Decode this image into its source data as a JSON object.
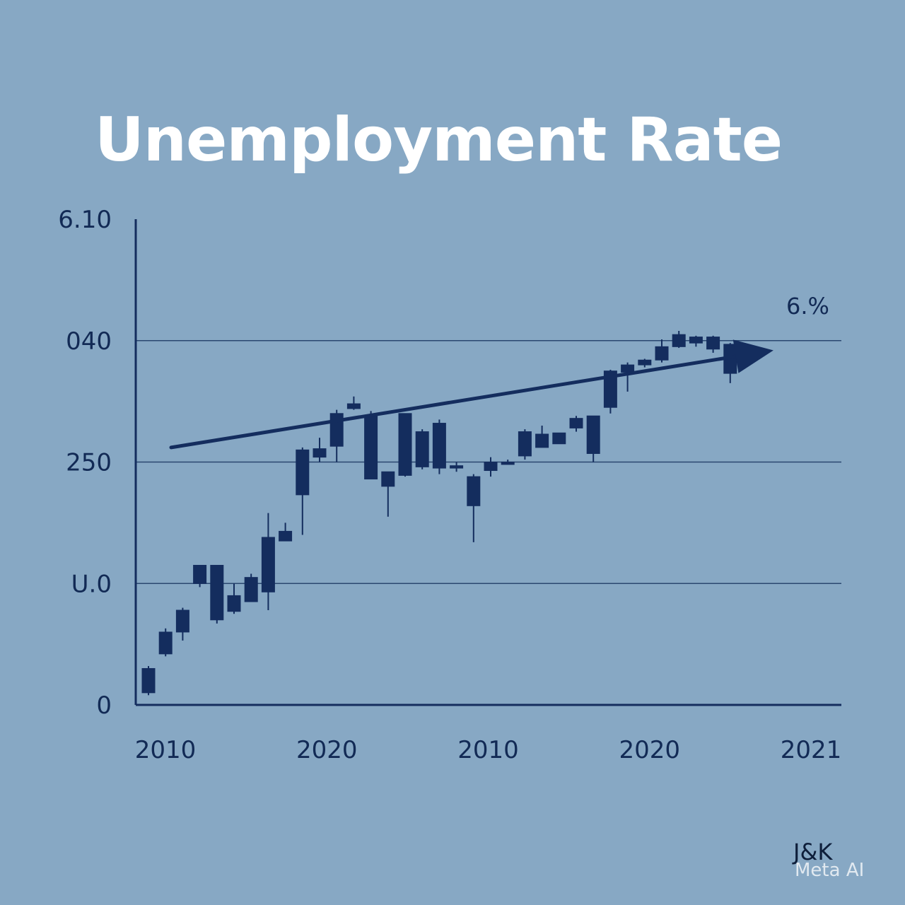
{
  "colors": {
    "background": "#87a8c4",
    "title": "#ffffff",
    "ink": "#122a55",
    "candle": "#142d5e",
    "gridline": "#2a4770"
  },
  "chart_data": {
    "type": "candlestick",
    "title": "Unemployment Rate",
    "xlabel": "",
    "ylabel": "",
    "y_tick_labels": [
      "0",
      "U.0",
      "250",
      "040",
      "6.10"
    ],
    "x_tick_labels": [
      "2010",
      "2020",
      "2010",
      "2020",
      "2021"
    ],
    "ylim": [
      0,
      4
    ],
    "grid": true,
    "annotation": "6.%",
    "trend_line": {
      "start": [
        1,
        2.12
      ],
      "end": [
        34,
        2.87
      ]
    },
    "candles": [
      {
        "x": 1,
        "open": 0.1,
        "close": 0.3,
        "high": 0.32,
        "low": 0.08
      },
      {
        "x": 2,
        "open": 0.42,
        "close": 0.6,
        "high": 0.63,
        "low": 0.4
      },
      {
        "x": 3,
        "open": 0.6,
        "close": 0.78,
        "high": 0.8,
        "low": 0.53
      },
      {
        "x": 4,
        "open": 1.0,
        "close": 1.15,
        "high": 1.15,
        "low": 0.97
      },
      {
        "x": 5,
        "open": 1.15,
        "close": 0.7,
        "high": 1.15,
        "low": 0.67
      },
      {
        "x": 6,
        "open": 0.77,
        "close": 0.9,
        "high": 1.0,
        "low": 0.75
      },
      {
        "x": 7,
        "open": 0.85,
        "close": 1.05,
        "high": 1.08,
        "low": 0.85
      },
      {
        "x": 8,
        "open": 0.93,
        "close": 1.38,
        "high": 1.58,
        "low": 0.78
      },
      {
        "x": 9,
        "open": 1.35,
        "close": 1.43,
        "high": 1.5,
        "low": 1.35
      },
      {
        "x": 10,
        "open": 1.73,
        "close": 2.1,
        "high": 2.12,
        "low": 1.4
      },
      {
        "x": 11,
        "open": 2.04,
        "close": 2.11,
        "high": 2.2,
        "low": 2.0
      },
      {
        "x": 12,
        "open": 2.13,
        "close": 2.4,
        "high": 2.43,
        "low": 2.0
      },
      {
        "x": 13,
        "open": 2.48,
        "close": 2.44,
        "high": 2.54,
        "low": 2.43
      },
      {
        "x": 14,
        "open": 2.38,
        "close": 1.86,
        "high": 2.42,
        "low": 1.86
      },
      {
        "x": 15,
        "open": 1.92,
        "close": 1.8,
        "high": 1.92,
        "low": 1.55
      },
      {
        "x": 16,
        "open": 2.4,
        "close": 1.89,
        "high": 2.4,
        "low": 1.88
      },
      {
        "x": 17,
        "open": 2.25,
        "close": 1.96,
        "high": 2.27,
        "low": 1.94
      },
      {
        "x": 18,
        "open": 2.32,
        "close": 1.95,
        "high": 2.35,
        "low": 1.9
      },
      {
        "x": 19,
        "open": 1.97,
        "close": 1.95,
        "high": 2.0,
        "low": 1.92
      },
      {
        "x": 20,
        "open": 1.88,
        "close": 1.64,
        "high": 1.9,
        "low": 1.34
      },
      {
        "x": 21,
        "open": 1.93,
        "close": 2.0,
        "high": 2.04,
        "low": 1.88
      },
      {
        "x": 22,
        "open": 2.0,
        "close": 1.98,
        "high": 2.02,
        "low": 1.98
      },
      {
        "x": 23,
        "open": 2.05,
        "close": 2.25,
        "high": 2.27,
        "low": 2.02
      },
      {
        "x": 24,
        "open": 2.23,
        "close": 2.12,
        "high": 2.3,
        "low": 2.12
      },
      {
        "x": 25,
        "open": 2.15,
        "close": 2.24,
        "high": 2.24,
        "low": 2.15
      },
      {
        "x": 26,
        "open": 2.28,
        "close": 2.36,
        "high": 2.38,
        "low": 2.25
      },
      {
        "x": 27,
        "open": 2.38,
        "close": 2.07,
        "high": 2.38,
        "low": 2.0
      },
      {
        "x": 28,
        "open": 2.45,
        "close": 2.75,
        "high": 2.76,
        "low": 2.4
      },
      {
        "x": 29,
        "open": 2.74,
        "close": 2.8,
        "high": 2.82,
        "low": 2.58
      },
      {
        "x": 30,
        "open": 2.8,
        "close": 2.84,
        "high": 2.85,
        "low": 2.78
      },
      {
        "x": 31,
        "open": 2.84,
        "close": 2.95,
        "high": 3.01,
        "low": 2.82
      },
      {
        "x": 32,
        "open": 2.95,
        "close": 3.05,
        "high": 3.08,
        "low": 2.94
      },
      {
        "x": 33,
        "open": 3.03,
        "close": 2.98,
        "high": 3.04,
        "low": 2.95
      },
      {
        "x": 34,
        "open": 3.03,
        "close": 2.93,
        "high": 3.04,
        "low": 2.9
      },
      {
        "x": 35,
        "open": 2.97,
        "close": 2.73,
        "high": 2.98,
        "low": 2.65
      }
    ]
  },
  "branding": {
    "publisher": "J&K",
    "watermark": "Meta AI"
  }
}
